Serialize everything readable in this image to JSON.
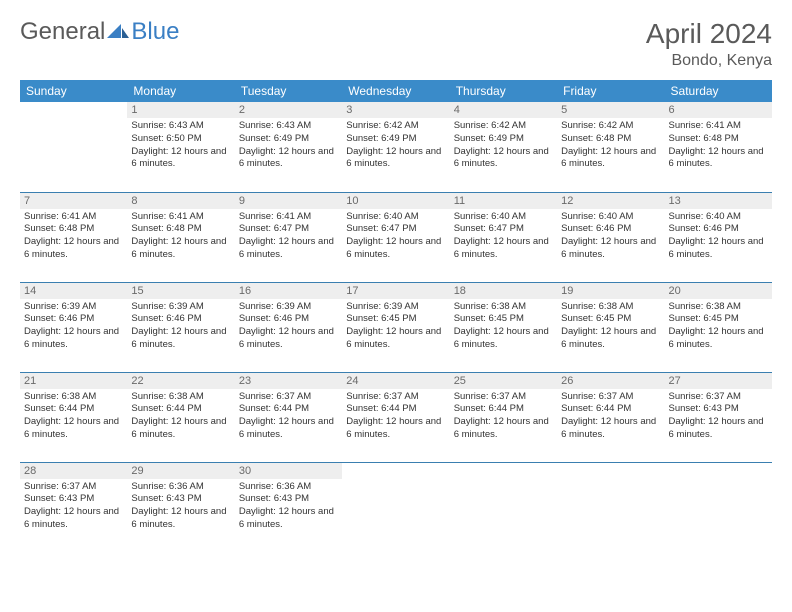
{
  "logo": {
    "text1": "General",
    "text2": "Blue"
  },
  "title": {
    "month_year": "April 2024",
    "location": "Bondo, Kenya"
  },
  "headers": [
    "Sunday",
    "Monday",
    "Tuesday",
    "Wednesday",
    "Thursday",
    "Friday",
    "Saturday"
  ],
  "colors": {
    "header_bg": "#3a8bc9",
    "header_text": "#ffffff",
    "daynum_bg": "#eeeeee",
    "daynum_text": "#6a6a6a",
    "rule": "#3a7fb0",
    "body_text": "#333333",
    "title_text": "#5a5a5a",
    "logo_blue": "#3a7fc4"
  },
  "weeks": [
    [
      {
        "n": "",
        "sr": "",
        "ss": "",
        "dl": ""
      },
      {
        "n": "1",
        "sr": "Sunrise: 6:43 AM",
        "ss": "Sunset: 6:50 PM",
        "dl": "Daylight: 12 hours and 6 minutes."
      },
      {
        "n": "2",
        "sr": "Sunrise: 6:43 AM",
        "ss": "Sunset: 6:49 PM",
        "dl": "Daylight: 12 hours and 6 minutes."
      },
      {
        "n": "3",
        "sr": "Sunrise: 6:42 AM",
        "ss": "Sunset: 6:49 PM",
        "dl": "Daylight: 12 hours and 6 minutes."
      },
      {
        "n": "4",
        "sr": "Sunrise: 6:42 AM",
        "ss": "Sunset: 6:49 PM",
        "dl": "Daylight: 12 hours and 6 minutes."
      },
      {
        "n": "5",
        "sr": "Sunrise: 6:42 AM",
        "ss": "Sunset: 6:48 PM",
        "dl": "Daylight: 12 hours and 6 minutes."
      },
      {
        "n": "6",
        "sr": "Sunrise: 6:41 AM",
        "ss": "Sunset: 6:48 PM",
        "dl": "Daylight: 12 hours and 6 minutes."
      }
    ],
    [
      {
        "n": "7",
        "sr": "Sunrise: 6:41 AM",
        "ss": "Sunset: 6:48 PM",
        "dl": "Daylight: 12 hours and 6 minutes."
      },
      {
        "n": "8",
        "sr": "Sunrise: 6:41 AM",
        "ss": "Sunset: 6:48 PM",
        "dl": "Daylight: 12 hours and 6 minutes."
      },
      {
        "n": "9",
        "sr": "Sunrise: 6:41 AM",
        "ss": "Sunset: 6:47 PM",
        "dl": "Daylight: 12 hours and 6 minutes."
      },
      {
        "n": "10",
        "sr": "Sunrise: 6:40 AM",
        "ss": "Sunset: 6:47 PM",
        "dl": "Daylight: 12 hours and 6 minutes."
      },
      {
        "n": "11",
        "sr": "Sunrise: 6:40 AM",
        "ss": "Sunset: 6:47 PM",
        "dl": "Daylight: 12 hours and 6 minutes."
      },
      {
        "n": "12",
        "sr": "Sunrise: 6:40 AM",
        "ss": "Sunset: 6:46 PM",
        "dl": "Daylight: 12 hours and 6 minutes."
      },
      {
        "n": "13",
        "sr": "Sunrise: 6:40 AM",
        "ss": "Sunset: 6:46 PM",
        "dl": "Daylight: 12 hours and 6 minutes."
      }
    ],
    [
      {
        "n": "14",
        "sr": "Sunrise: 6:39 AM",
        "ss": "Sunset: 6:46 PM",
        "dl": "Daylight: 12 hours and 6 minutes."
      },
      {
        "n": "15",
        "sr": "Sunrise: 6:39 AM",
        "ss": "Sunset: 6:46 PM",
        "dl": "Daylight: 12 hours and 6 minutes."
      },
      {
        "n": "16",
        "sr": "Sunrise: 6:39 AM",
        "ss": "Sunset: 6:46 PM",
        "dl": "Daylight: 12 hours and 6 minutes."
      },
      {
        "n": "17",
        "sr": "Sunrise: 6:39 AM",
        "ss": "Sunset: 6:45 PM",
        "dl": "Daylight: 12 hours and 6 minutes."
      },
      {
        "n": "18",
        "sr": "Sunrise: 6:38 AM",
        "ss": "Sunset: 6:45 PM",
        "dl": "Daylight: 12 hours and 6 minutes."
      },
      {
        "n": "19",
        "sr": "Sunrise: 6:38 AM",
        "ss": "Sunset: 6:45 PM",
        "dl": "Daylight: 12 hours and 6 minutes."
      },
      {
        "n": "20",
        "sr": "Sunrise: 6:38 AM",
        "ss": "Sunset: 6:45 PM",
        "dl": "Daylight: 12 hours and 6 minutes."
      }
    ],
    [
      {
        "n": "21",
        "sr": "Sunrise: 6:38 AM",
        "ss": "Sunset: 6:44 PM",
        "dl": "Daylight: 12 hours and 6 minutes."
      },
      {
        "n": "22",
        "sr": "Sunrise: 6:38 AM",
        "ss": "Sunset: 6:44 PM",
        "dl": "Daylight: 12 hours and 6 minutes."
      },
      {
        "n": "23",
        "sr": "Sunrise: 6:37 AM",
        "ss": "Sunset: 6:44 PM",
        "dl": "Daylight: 12 hours and 6 minutes."
      },
      {
        "n": "24",
        "sr": "Sunrise: 6:37 AM",
        "ss": "Sunset: 6:44 PM",
        "dl": "Daylight: 12 hours and 6 minutes."
      },
      {
        "n": "25",
        "sr": "Sunrise: 6:37 AM",
        "ss": "Sunset: 6:44 PM",
        "dl": "Daylight: 12 hours and 6 minutes."
      },
      {
        "n": "26",
        "sr": "Sunrise: 6:37 AM",
        "ss": "Sunset: 6:44 PM",
        "dl": "Daylight: 12 hours and 6 minutes."
      },
      {
        "n": "27",
        "sr": "Sunrise: 6:37 AM",
        "ss": "Sunset: 6:43 PM",
        "dl": "Daylight: 12 hours and 6 minutes."
      }
    ],
    [
      {
        "n": "28",
        "sr": "Sunrise: 6:37 AM",
        "ss": "Sunset: 6:43 PM",
        "dl": "Daylight: 12 hours and 6 minutes."
      },
      {
        "n": "29",
        "sr": "Sunrise: 6:36 AM",
        "ss": "Sunset: 6:43 PM",
        "dl": "Daylight: 12 hours and 6 minutes."
      },
      {
        "n": "30",
        "sr": "Sunrise: 6:36 AM",
        "ss": "Sunset: 6:43 PM",
        "dl": "Daylight: 12 hours and 6 minutes."
      },
      {
        "n": "",
        "sr": "",
        "ss": "",
        "dl": ""
      },
      {
        "n": "",
        "sr": "",
        "ss": "",
        "dl": ""
      },
      {
        "n": "",
        "sr": "",
        "ss": "",
        "dl": ""
      },
      {
        "n": "",
        "sr": "",
        "ss": "",
        "dl": ""
      }
    ]
  ]
}
